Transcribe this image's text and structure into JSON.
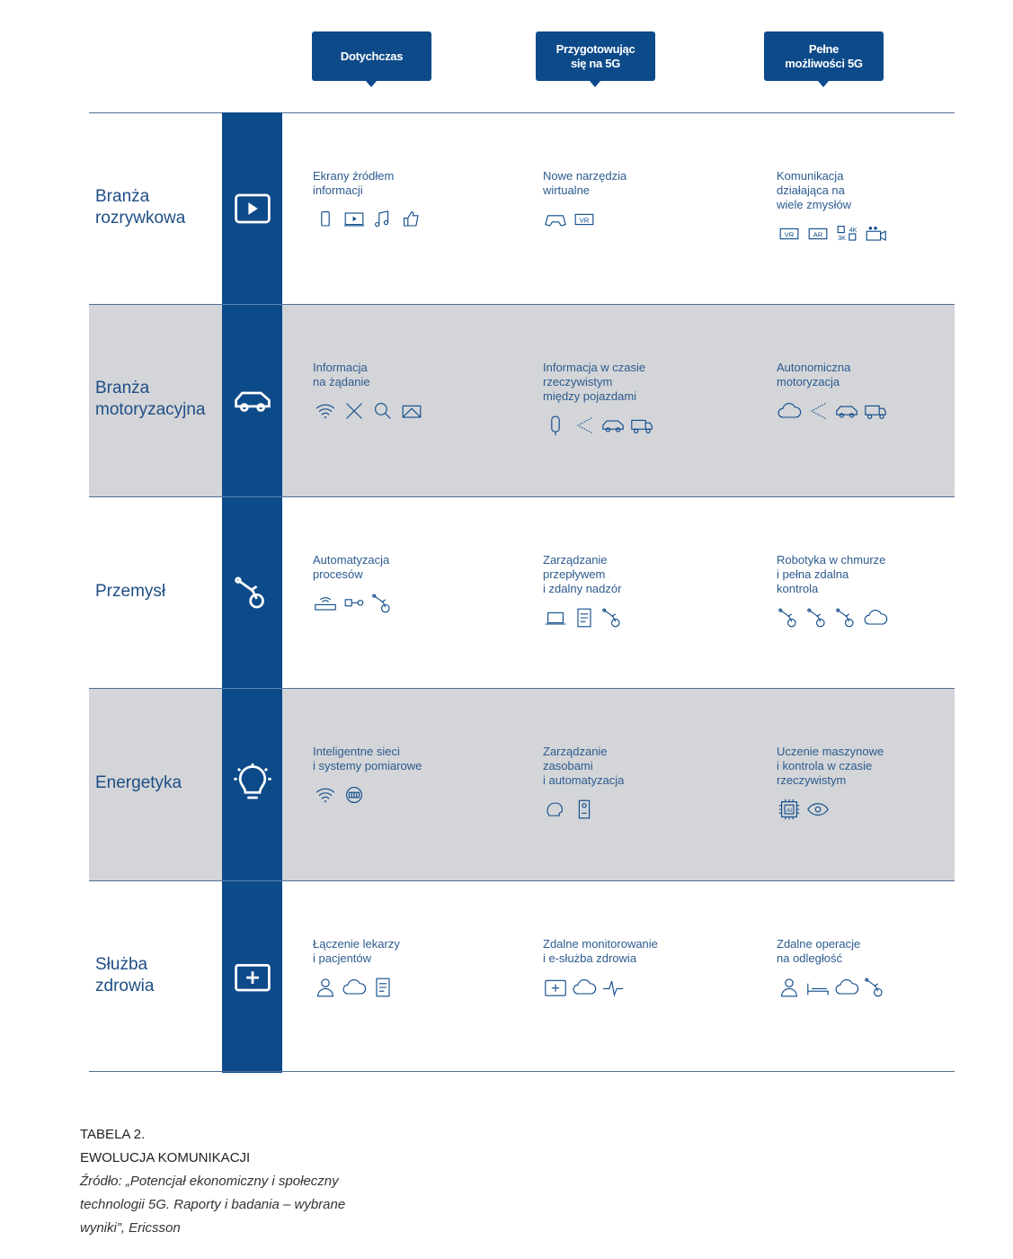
{
  "columns": [
    "Dotychczas",
    "Przygotowując\nsię na 5G",
    "Pełne\nmożliwości 5G"
  ],
  "colors": {
    "accent": "#0d4a8a",
    "row_gray": "#d3d5d8",
    "text": "#2d5b8f"
  },
  "rows": [
    {
      "label": "Branża\nrozrywkowa",
      "icon": "play-icon",
      "gray": false,
      "cells": [
        {
          "text": "Ekrany źródłem\ninformacji",
          "icons": [
            "phone-icon",
            "tv-icon",
            "music-icon",
            "thumbs-up-icon"
          ]
        },
        {
          "text": "Nowe narzędzia\nwirtualne",
          "icons": [
            "gamepad-icon",
            "vr-icon"
          ]
        },
        {
          "text": "Komunikacja\ndziałająca na\nwiele zmysłów",
          "icons": [
            "vr-icon",
            "ar-icon",
            "4k-3k-icon",
            "camera-icon"
          ]
        }
      ]
    },
    {
      "label": "Branża\nmotoryzacyjna",
      "icon": "car-icon",
      "gray": true,
      "cells": [
        {
          "text": "Informacja\nna żądanie",
          "icons": [
            "wifi-icon",
            "tools-icon",
            "search-icon",
            "map-icon"
          ]
        },
        {
          "text": "Informacja w czasie\nrzeczywistym\nmiędzy pojazdami",
          "icons": [
            "traffic-light-icon",
            "signal-icon",
            "car-icon",
            "truck-icon"
          ]
        },
        {
          "text": "Autonomiczna\nmotoryzacja",
          "icons": [
            "cloud-icon",
            "signal-icon",
            "car-icon",
            "truck-icon"
          ]
        }
      ]
    },
    {
      "label": "Przemysł",
      "icon": "robot-arm-icon",
      "gray": false,
      "cells": [
        {
          "text": "Automatyzacja\nprocesów",
          "icons": [
            "router-icon",
            "sensor-icon",
            "robot-arm-icon"
          ]
        },
        {
          "text": "Zarządzanie\nprzepływem\ni zdalny nadzór",
          "icons": [
            "laptop-icon",
            "checklist-icon",
            "robot-arm-icon"
          ]
        },
        {
          "text": "Robotyka w chmurze\ni pełna zdalna\nkontrola",
          "icons": [
            "robot-arm-icon",
            "robot-arm-icon",
            "robot-arm-icon",
            "cloud-icon"
          ]
        }
      ]
    },
    {
      "label": "Energetyka",
      "icon": "lightbulb-icon",
      "gray": true,
      "cells": [
        {
          "text": "Inteligentne sieci\ni systemy pomiarowe",
          "icons": [
            "wifi-icon",
            "meter-icon"
          ]
        },
        {
          "text": "Zarządzanie\nzasobami\ni automatyzacja",
          "icons": [
            "head-icon",
            "device-icon"
          ]
        },
        {
          "text": "Uczenie maszynowe\ni kontrola w czasie\nrzeczywistym",
          "icons": [
            "ai-chip-icon",
            "eye-icon"
          ]
        }
      ]
    },
    {
      "label": "Służba\nzdrowia",
      "icon": "medical-kit-icon",
      "gray": false,
      "cells": [
        {
          "text": "Łączenie lekarzy\ni pacjentów",
          "icons": [
            "person-icon",
            "cloud-icon",
            "checklist-icon"
          ]
        },
        {
          "text": "Zdalne monitorowanie\ni e-służba zdrowia",
          "icons": [
            "medical-kit-icon",
            "cloud-icon",
            "heartbeat-icon"
          ]
        },
        {
          "text": "Zdalne operacje\nna odległość",
          "icons": [
            "person-icon",
            "bed-icon",
            "cloud-icon",
            "robot-arm-icon"
          ]
        }
      ]
    }
  ],
  "caption": {
    "line1": "TABELA 2.",
    "line2": "EWOLUCJA KOMUNIKACJI",
    "source": "Źródło: „Potencjał ekonomiczny i społeczny\ntechnologii 5G. Raporty i badania – wybrane\nwyniki”, Ericsson"
  }
}
